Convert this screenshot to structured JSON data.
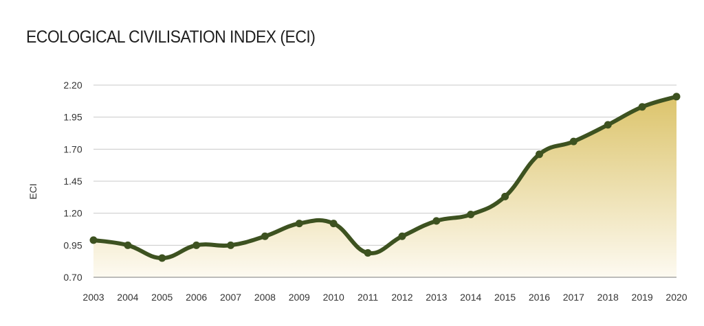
{
  "chart_data": {
    "type": "area",
    "title": "ECOLOGICAL CIVILISATION INDEX (ECI)",
    "xlabel": "",
    "ylabel": "ECI",
    "x": [
      2003,
      2004,
      2005,
      2006,
      2007,
      2008,
      2009,
      2010,
      2011,
      2012,
      2013,
      2014,
      2015,
      2016,
      2017,
      2018,
      2019,
      2020
    ],
    "x_tick_labels": [
      "2003",
      "2004",
      "2005",
      "2006",
      "2007",
      "2008",
      "2009",
      "2010",
      "2011",
      "2012",
      "2013",
      "2014",
      "2015",
      "2016",
      "2017",
      "2018",
      "2019",
      "2020"
    ],
    "y_ticks": [
      0.7,
      0.95,
      1.2,
      1.45,
      1.7,
      1.95,
      2.2
    ],
    "y_tick_labels": [
      "0.70",
      "0.95",
      "1.20",
      "1.45",
      "1.70",
      "1.95",
      "2.20"
    ],
    "ylim": [
      0.7,
      2.2
    ],
    "series": [
      {
        "values": [
          0.99,
          0.95,
          0.85,
          0.95,
          0.95,
          1.02,
          1.12,
          1.12,
          0.89,
          1.02,
          1.14,
          1.19,
          1.33,
          1.66,
          1.76,
          1.89,
          2.03,
          2.11
        ]
      }
    ],
    "grid": true,
    "colors": {
      "line": "#3d5220",
      "marker": "#3d5220",
      "fill_top": "#dcc46b",
      "fill_bottom": "#fdfaf1",
      "grid": "#c8c8c8",
      "axis": "#7a7a7a"
    }
  }
}
